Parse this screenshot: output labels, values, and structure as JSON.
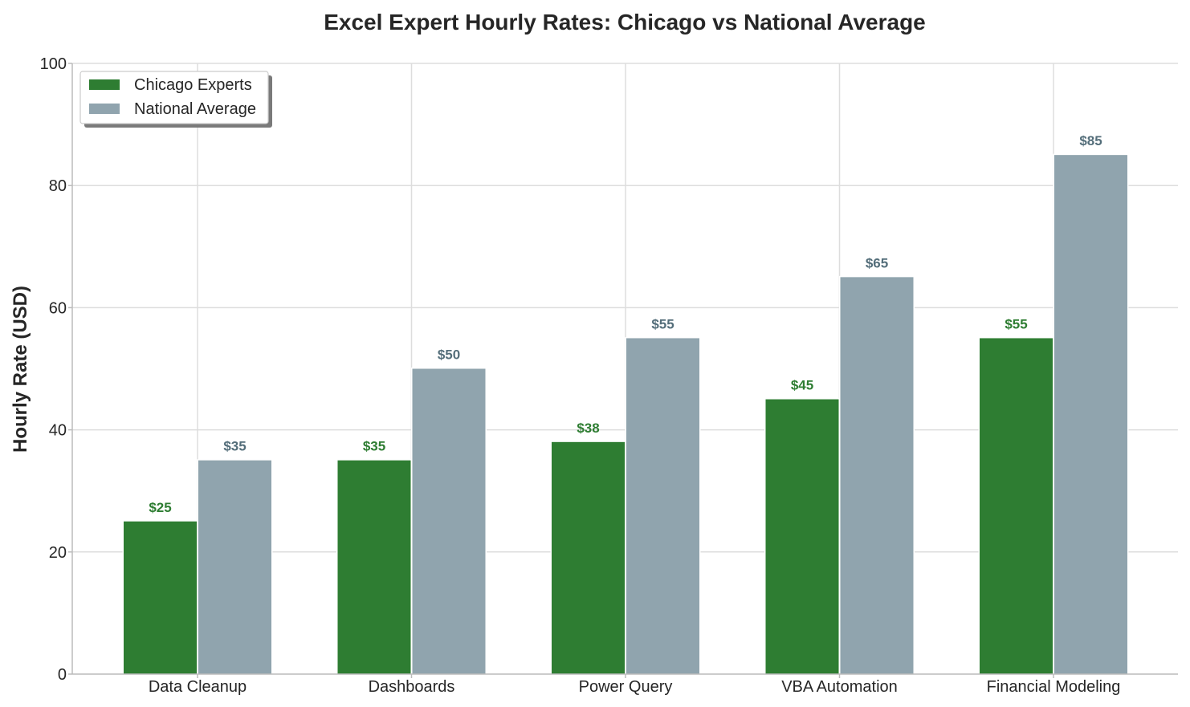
{
  "chart_data": {
    "type": "bar",
    "title": "Excel Expert Hourly Rates: Chicago vs National Average",
    "xlabel": "",
    "ylabel": "Hourly Rate (USD)",
    "ylim": [
      0,
      100
    ],
    "yticks": [
      0,
      20,
      40,
      60,
      80,
      100
    ],
    "grid": true,
    "legend_position": "top-left",
    "categories": [
      "Data Cleanup",
      "Dashboards",
      "Power Query",
      "VBA Automation",
      "Financial Modeling"
    ],
    "series": [
      {
        "name": "Chicago Experts",
        "color": "#2e7d32",
        "label_color": "#2e7d32",
        "values": [
          25,
          35,
          38,
          45,
          55
        ],
        "labels": [
          "$25",
          "$35",
          "$38",
          "$45",
          "$55"
        ]
      },
      {
        "name": "National Average",
        "color": "#90a4ae",
        "label_color": "#546e7a",
        "values": [
          35,
          50,
          55,
          65,
          85
        ],
        "labels": [
          "$35",
          "$50",
          "$55",
          "$65",
          "$85"
        ]
      }
    ]
  }
}
